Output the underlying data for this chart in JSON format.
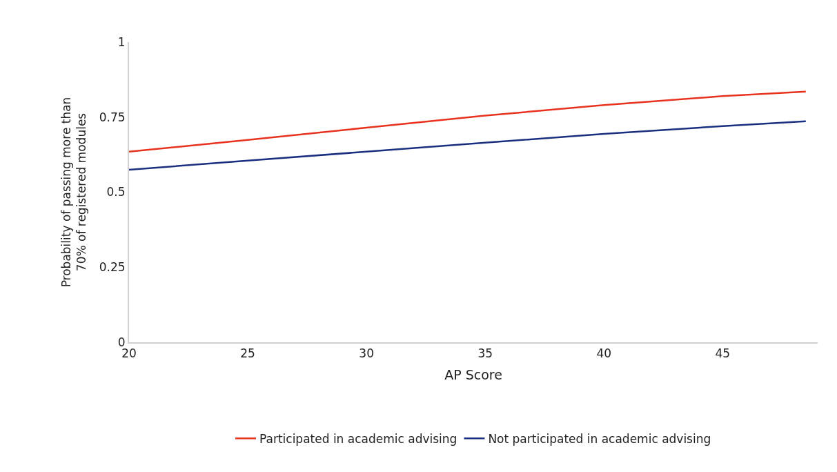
{
  "chart_data": {
    "type": "line",
    "xlabel": "AP Score",
    "ylabel": "Probability of passing more than\n70% of registered modules",
    "x": [
      20,
      25,
      30,
      35,
      40,
      45,
      48.5
    ],
    "series": [
      {
        "name": "Participated in academic advising",
        "color": "#e8321e",
        "values": [
          0.635,
          0.674,
          0.715,
          0.755,
          0.79,
          0.82,
          0.835
        ]
      },
      {
        "name": "Not participated in academic advising",
        "color": "#1a2f80",
        "values": [
          0.575,
          0.605,
          0.635,
          0.665,
          0.694,
          0.72,
          0.736
        ]
      }
    ],
    "xlim": [
      20,
      49
    ],
    "xticks": [
      20,
      25,
      30,
      35,
      40,
      45
    ],
    "ylim": [
      0,
      1
    ],
    "yticks": [
      0,
      0.25,
      0.5,
      0.75,
      1
    ],
    "legend": "bottom",
    "marker": "none",
    "line_style": "solid"
  }
}
